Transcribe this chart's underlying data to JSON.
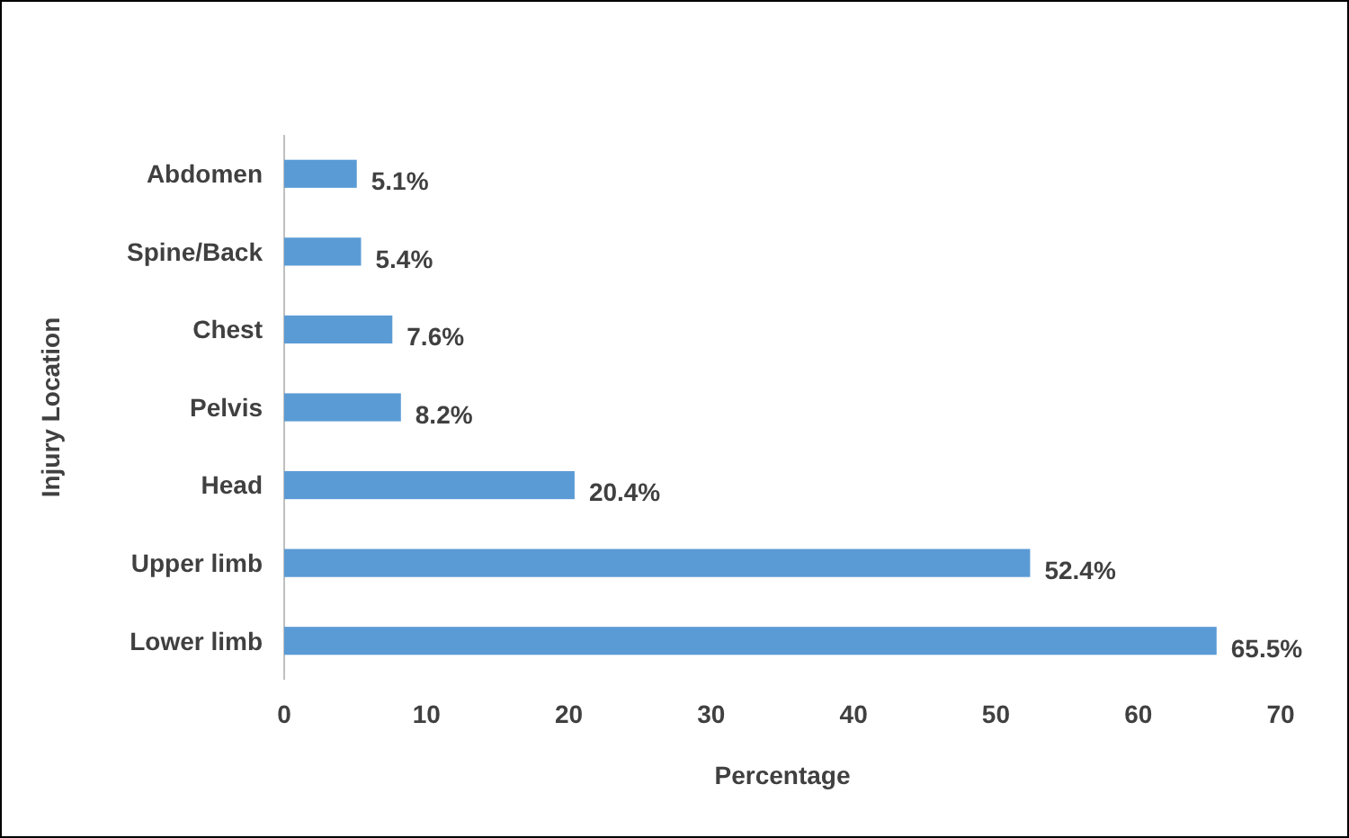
{
  "chart_data": {
    "type": "bar",
    "orientation": "horizontal",
    "xlabel": "Percentage",
    "ylabel": "Injury Location",
    "categories": [
      "Abdomen",
      "Spine/Back",
      "Chest",
      "Pelvis",
      "Head",
      "Upper limb",
      "Lower limb"
    ],
    "values": [
      5.1,
      5.4,
      7.6,
      8.2,
      20.4,
      52.4,
      65.5
    ],
    "value_labels": [
      "5.1%",
      "5.4%",
      "7.6%",
      "8.2%",
      "20.4%",
      "52.4%",
      "65.5%"
    ],
    "color": "#5b9bd5",
    "xlim": [
      0,
      70
    ],
    "xticks": [
      0,
      10,
      20,
      30,
      40,
      50,
      60,
      70
    ],
    "grid": false
  }
}
